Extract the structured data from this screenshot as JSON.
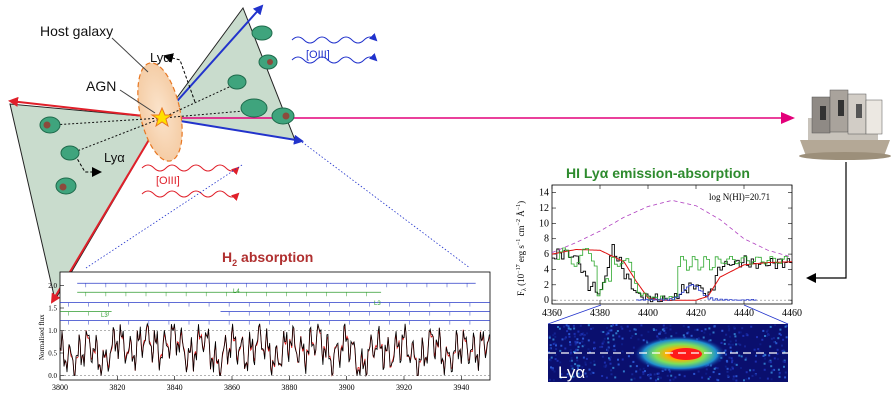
{
  "diagram": {
    "labels": {
      "host_galaxy": "Host galaxy",
      "agn": "AGN",
      "lya_top": "Lyα",
      "lya_bottom": "Lyα",
      "oiii_top": "[OIII]",
      "oiii_bottom": "[OIII]"
    },
    "colors": {
      "cone_fill": "#c9dccd",
      "cloud_fill": "#3fa47d",
      "cloud_core": "#8c4a3c",
      "arrow_blue": "#2233cc",
      "arrow_red": "#e0202a",
      "sightline": "#e3007a",
      "galaxy_fill": "#f7d9b8",
      "galaxy_edge": "#e87722",
      "agn_star": "#ffe000"
    },
    "icons": {
      "telescope": "telescope-observatory-icon"
    }
  },
  "h2_panel": {
    "title": "H",
    "title_sub": "2",
    "title_rest": " absorption",
    "ylabel": "Normalised flux",
    "series_labels": {
      "l4": "L4",
      "l3_right": "L3",
      "l3_left": "L3"
    },
    "colors": {
      "title": "#b03030",
      "observed": "#000000",
      "model": "#e01010",
      "lines_blue": "#2a3bc8",
      "lines_green": "#2e9b2e"
    }
  },
  "lya_panel": {
    "title": "HI Lyα emission-absorption",
    "ylabel": "F",
    "ylabel_sub": "λ",
    "ylabel_rest": " (10",
    "ylabel_exp1": "−17",
    "ylabel_mid": " erg s",
    "ylabel_exp2": "−1",
    "ylabel_mid2": " cm",
    "ylabel_exp3": "−2",
    "ylabel_mid3": " Å",
    "ylabel_exp4": "−1",
    "ylabel_end": ")",
    "annotation": "log N(HI)=20.71",
    "image_label": "Lyα",
    "colors": {
      "title": "#2e8b2e"
    }
  },
  "chart_data": [
    {
      "type": "line",
      "ylabel": "Normalised flux",
      "xlim": [
        3800,
        3950
      ],
      "ylim": [
        -0.1,
        2.3
      ],
      "x_ticks": [
        "3800",
        "3820",
        "3840",
        "3860",
        "3880",
        "3900",
        "3920",
        "3940"
      ],
      "y_ticks": [
        "0.0",
        "0.5",
        "1.0",
        "1.5",
        "2.0"
      ],
      "series": [
        {
          "name": "",
          "x": [
            3800,
            3805,
            3810,
            3815,
            3820,
            3825,
            3830,
            3835,
            3840,
            3845,
            3850,
            3855,
            3860,
            3865,
            3870,
            3875,
            3880,
            3885,
            3890,
            3895,
            3900,
            3905,
            3910,
            3915,
            3920,
            3925,
            3930,
            3935,
            3940,
            3945,
            3950
          ],
          "y": [
            0.55,
            0.3,
            0.75,
            0.2,
            0.85,
            0.45,
            0.9,
            0.5,
            0.95,
            0.35,
            0.9,
            0.2,
            0.8,
            0.4,
            0.85,
            0.25,
            0.8,
            0.45,
            0.9,
            0.3,
            0.85,
            0.1,
            0.75,
            0.4,
            0.8,
            0.2,
            0.85,
            0.3,
            0.7,
            0.5,
            0.85
          ]
        }
      ]
    },
    {
      "type": "line",
      "title": "HI Lyα emission-absorption",
      "xlim": [
        4360,
        4460
      ],
      "ylim": [
        -0.5,
        15
      ],
      "x_ticks": [
        "4360",
        "4380",
        "4400",
        "4420",
        "4440",
        "4460"
      ],
      "y_ticks": [
        "0",
        "2",
        "4",
        "6",
        "8",
        "10",
        "12",
        "14"
      ],
      "annotations": [
        "log N(HI)=20.71"
      ],
      "series": [
        {
          "name": "",
          "x": [
            4360,
            4365,
            4370,
            4375,
            4380,
            4385,
            4390,
            4395,
            4400,
            4405,
            4410,
            4415,
            4420,
            4425,
            4430,
            4435,
            4440,
            4445,
            4450,
            4455,
            4460
          ],
          "y": [
            5.8,
            6.2,
            5.5,
            2.0,
            1.0,
            6.8,
            3.5,
            0.8,
            0.2,
            0.1,
            0.2,
            1.5,
            2.0,
            0.5,
            4.5,
            4.8,
            5.0,
            4.6,
            4.8,
            4.9,
            5.0
          ]
        },
        {
          "name": "",
          "x": [
            4360,
            4370,
            4380,
            4390,
            4395,
            4400,
            4405,
            4410,
            4420,
            4425,
            4430,
            4440,
            4450,
            4460
          ],
          "y": [
            6.0,
            6.6,
            6.5,
            5.0,
            2.5,
            0.3,
            0.0,
            0.0,
            0.0,
            0.5,
            3.0,
            4.6,
            4.9,
            5.0
          ]
        },
        {
          "name": "",
          "x": [
            4360,
            4370,
            4380,
            4390,
            4400,
            4410,
            4420,
            4430,
            4440,
            4450,
            4460
          ],
          "y": [
            6.2,
            7.5,
            9.0,
            10.8,
            12.2,
            13.0,
            12.3,
            10.5,
            8.0,
            6.5,
            5.6
          ]
        }
      ]
    }
  ]
}
